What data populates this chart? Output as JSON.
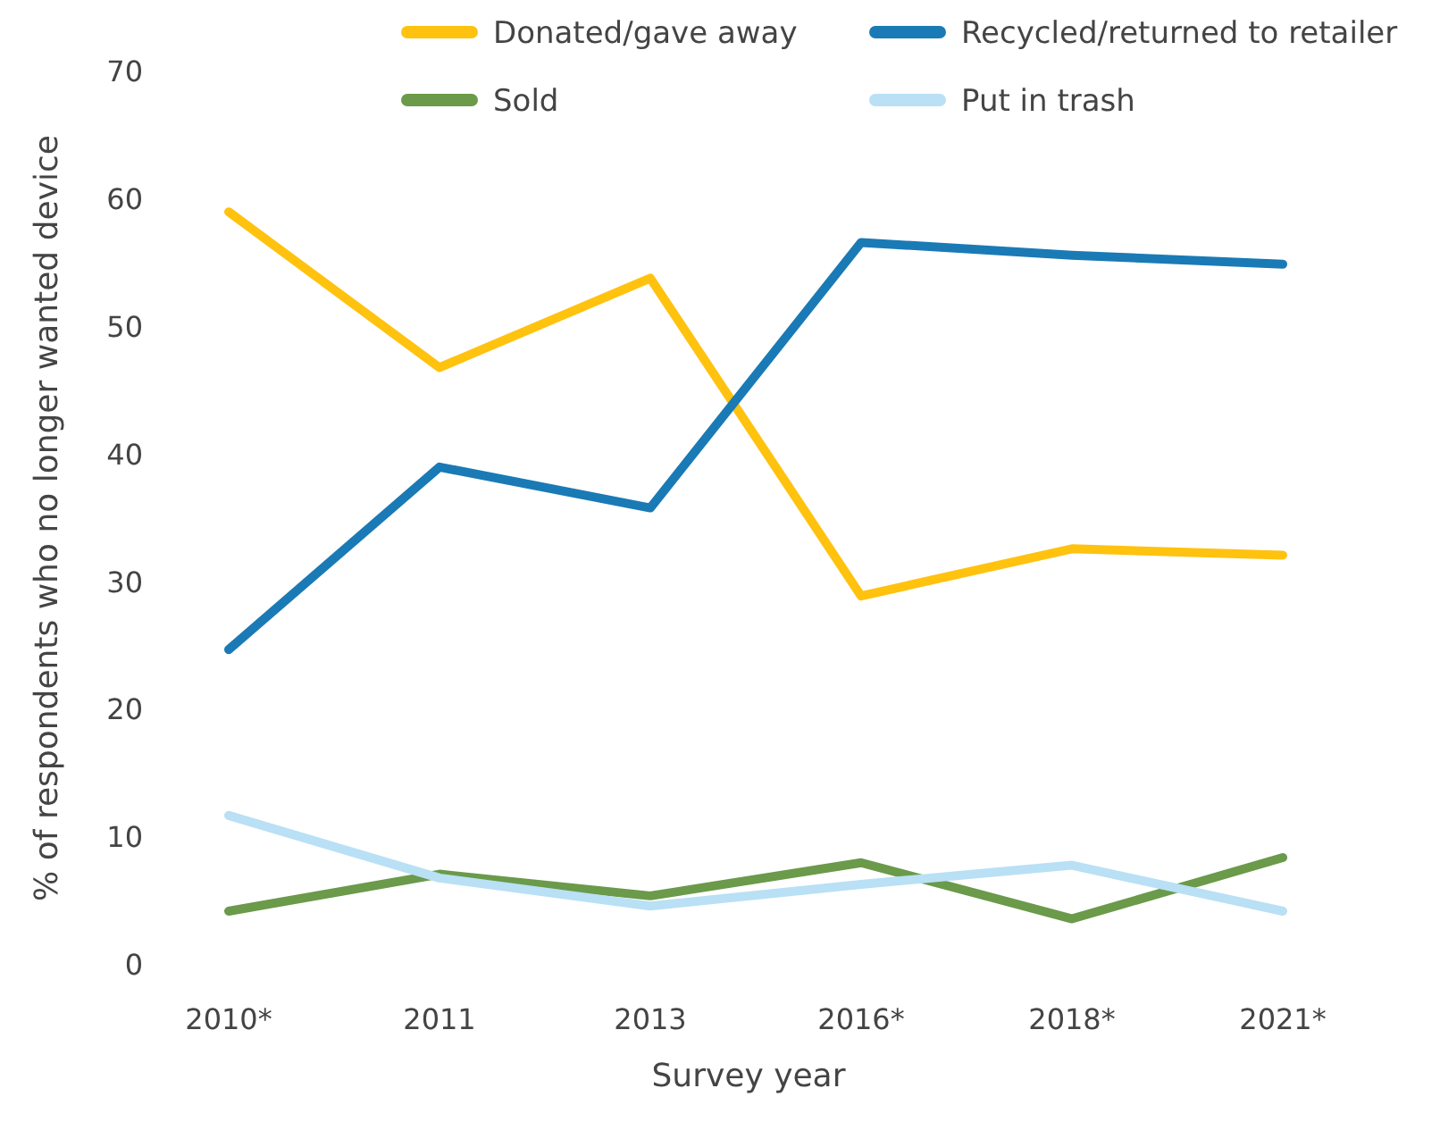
{
  "chart_data": {
    "type": "line",
    "xlabel": "Survey year",
    "ylabel": "% of respondents who no longer wanted device",
    "categories": [
      "2010*",
      "2011",
      "2013",
      "2016*",
      "2018*",
      "2021*"
    ],
    "ylim": [
      0,
      70
    ],
    "yticks": [
      0,
      10,
      20,
      30,
      40,
      50,
      60,
      70
    ],
    "grid": false,
    "legend": "top",
    "marker": "none",
    "line_style": "solid",
    "series": [
      {
        "name": "Donated/gave away",
        "color": "#ffc20e",
        "values": [
          59.0,
          46.8,
          53.8,
          28.9,
          32.6,
          32.1
        ]
      },
      {
        "name": "Recycled/returned to retailer",
        "color": "#1a7ab5",
        "values": [
          24.7,
          39.0,
          35.8,
          56.6,
          55.6,
          54.9
        ]
      },
      {
        "name": "Sold",
        "color": "#6a9a4a",
        "values": [
          4.2,
          7.1,
          5.4,
          8.0,
          3.6,
          8.4
        ]
      },
      {
        "name": "Put in trash",
        "color": "#b9e0f5",
        "values": [
          11.7,
          6.8,
          4.6,
          6.3,
          7.8,
          4.2
        ]
      }
    ]
  }
}
